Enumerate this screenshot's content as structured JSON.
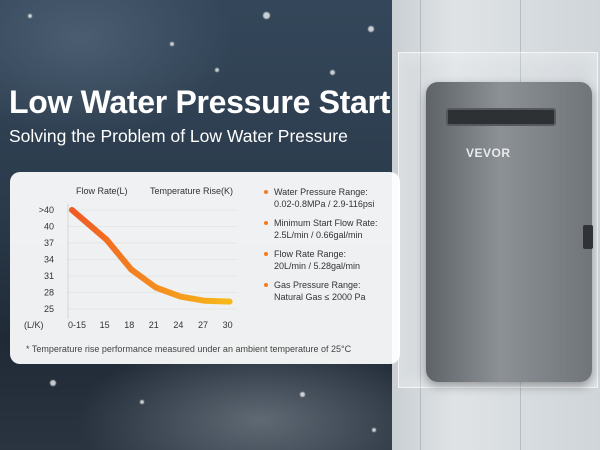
{
  "headline": "Low Water Pressure Start",
  "subheadline": "Solving the Problem of Low Water Pressure",
  "product_brand": "VEVOR",
  "chart_data": {
    "type": "line",
    "x_header": "Flow Rate(L)",
    "y_header": "Temperature Rise(K)",
    "y_unit_label": "(L/K)",
    "x_tick_labels": [
      "0-15",
      "15",
      "18",
      "21",
      "24",
      "27",
      "30"
    ],
    "y_tick_labels": [
      ">40",
      "40",
      "37",
      "34",
      "31",
      "28",
      "25"
    ],
    "series": [
      {
        "color": "#f47b20",
        "x": [
          0,
          1,
          2,
          3,
          4,
          5,
          6
        ],
        "y": [
          6,
          4.2,
          2.4,
          1.3,
          0.75,
          0.5,
          0.45
        ]
      }
    ],
    "curve_colors": {
      "start": "#f05a24",
      "end": "#f7b91a"
    },
    "grid": true
  },
  "specs": [
    {
      "title": "Water Pressure Range:",
      "value": "0.02-0.8MPa / 2.9-116psi"
    },
    {
      "title": "Minimum Start Flow Rate:",
      "value": "2.5L/min / 0.66gal/min"
    },
    {
      "title": "Flow Rate Range:",
      "value": "20L/min / 5.28gal/min"
    },
    {
      "title": "Gas Pressure Range:",
      "value": "Natural Gas ≤ 2000 Pa"
    }
  ],
  "footnote": "* Temperature rise performance measured under an ambient temperature of 25°C"
}
